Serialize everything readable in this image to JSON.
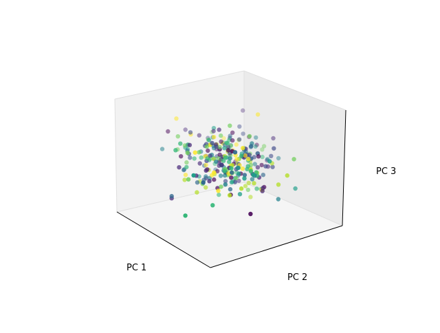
{
  "chart_data": {
    "type": "scatter",
    "projection": "3d",
    "xlabel": "PC 1",
    "ylabel": "PC 2",
    "zlabel": "PC 3",
    "colormap": "viridis",
    "tick_labels_shown": false,
    "grid": false,
    "legend": "none",
    "xlim": [
      -4,
      4
    ],
    "ylim": [
      -4,
      4
    ],
    "zlim": [
      -4,
      4
    ],
    "point_count": 300,
    "points": []
  }
}
